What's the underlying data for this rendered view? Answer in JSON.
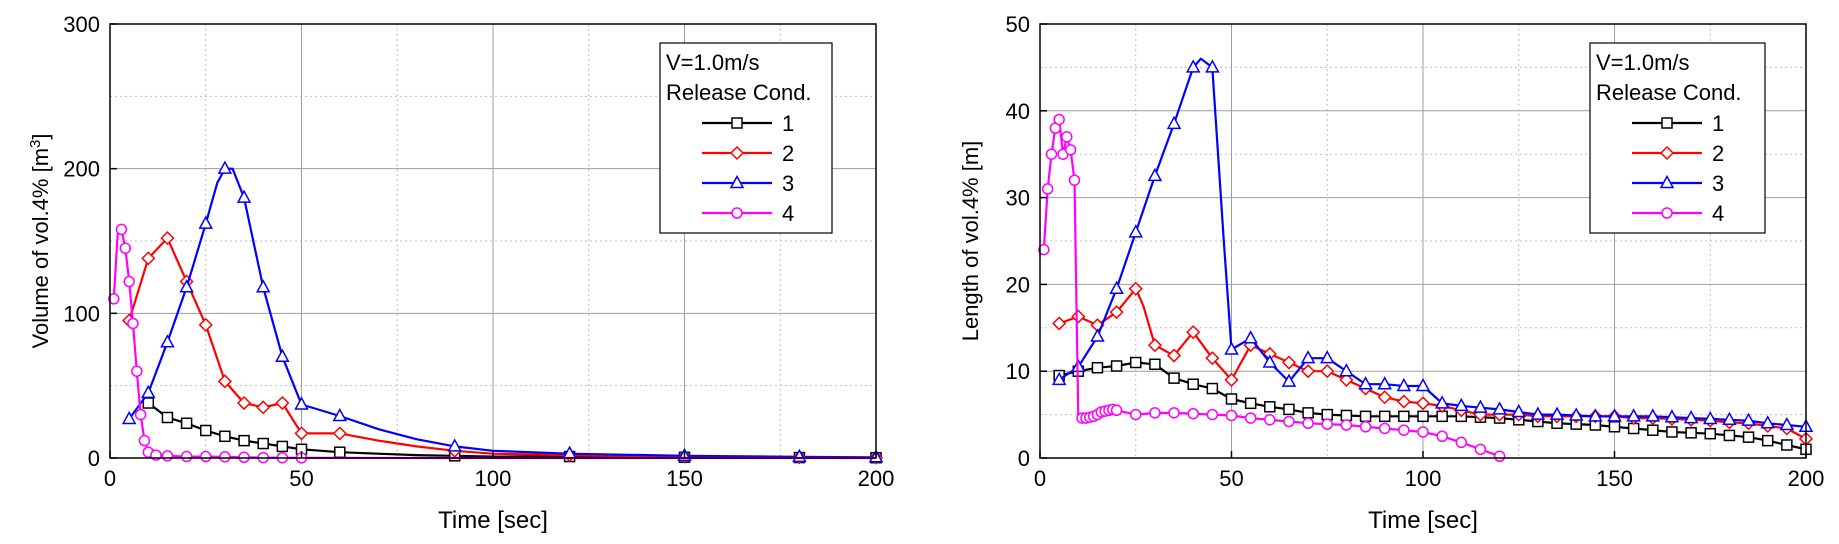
{
  "chart_data": [
    {
      "type": "line",
      "xlabel": "Time [sec]",
      "ylabel": "Volume of vol.4% [m",
      "ylabel_sup": "3",
      "ylabel_tail": "]",
      "xlim": [
        0,
        200
      ],
      "ylim": [
        0,
        300
      ],
      "xticks": [
        0,
        50,
        100,
        150,
        200
      ],
      "yticks": [
        0,
        100,
        200,
        300
      ],
      "grid": true,
      "legend": {
        "position": "top-right",
        "title_lines": [
          "V=1.0m/s",
          "Release Cond."
        ]
      },
      "series": [
        {
          "name": "1",
          "color": "#000000",
          "marker": "square",
          "x": [
            10,
            15,
            20,
            25,
            30,
            35,
            40,
            45,
            50,
            60,
            70,
            80,
            90,
            100,
            120,
            150,
            180,
            200
          ],
          "y": [
            38,
            28,
            24,
            19,
            15,
            12,
            10,
            8,
            6,
            4,
            3,
            2,
            1.5,
            1,
            1,
            0.5,
            0.3,
            0.2
          ],
          "markers_at": [
            10,
            15,
            20,
            25,
            30,
            35,
            40,
            45,
            50,
            60,
            90,
            120,
            150,
            180,
            200
          ]
        },
        {
          "name": "2",
          "color": "#ff0000",
          "marker": "diamond",
          "x": [
            5,
            10,
            15,
            20,
            25,
            30,
            35,
            40,
            45,
            50,
            60,
            70,
            80,
            90,
            100,
            120,
            150,
            180,
            200
          ],
          "y": [
            95,
            138,
            152,
            122,
            92,
            53,
            38,
            35,
            38,
            17,
            17,
            12,
            8,
            5,
            3,
            2,
            1,
            0.5,
            0.3
          ],
          "markers_at": [
            5,
            10,
            15,
            20,
            25,
            30,
            35,
            40,
            45,
            50,
            60,
            90,
            120,
            150,
            180,
            200
          ]
        },
        {
          "name": "3",
          "color": "#0000ff",
          "marker": "triangle",
          "x": [
            5,
            10,
            15,
            20,
            25,
            28,
            30,
            32,
            35,
            40,
            45,
            50,
            60,
            70,
            80,
            90,
            100,
            120,
            150,
            180,
            200
          ],
          "y": [
            27,
            45,
            80,
            118,
            162,
            190,
            200,
            200,
            180,
            118,
            70,
            37,
            29,
            20,
            13,
            8,
            5,
            3,
            1.5,
            0.8,
            0.5
          ],
          "markers_at": [
            5,
            10,
            15,
            20,
            25,
            30,
            35,
            40,
            45,
            50,
            60,
            90,
            120,
            150,
            180,
            200
          ]
        },
        {
          "name": "4",
          "color": "#ff00ff",
          "marker": "circle",
          "x": [
            1,
            2,
            3,
            4,
            5,
            6,
            7,
            8,
            9,
            10,
            12,
            15,
            20,
            25,
            30,
            35,
            40,
            45,
            50,
            60,
            80,
            100,
            150,
            200
          ],
          "y": [
            110,
            155,
            158,
            145,
            122,
            93,
            60,
            30,
            12,
            4,
            2,
            1.5,
            1,
            1,
            0.8,
            0.5,
            0.3,
            0.2,
            0.1,
            0.1,
            0,
            0,
            0,
            0
          ],
          "markers_at": [
            1,
            3,
            4,
            5,
            6,
            7,
            8,
            9,
            10,
            12,
            15,
            20,
            25,
            30,
            35,
            40,
            45,
            50
          ]
        }
      ]
    },
    {
      "type": "line",
      "xlabel": "Time [sec]",
      "ylabel": "Length of vol.4% [m]",
      "ylabel_sup": "",
      "ylabel_tail": "",
      "xlim": [
        0,
        200
      ],
      "ylim": [
        0,
        50
      ],
      "xticks": [
        0,
        50,
        100,
        150,
        200
      ],
      "yticks": [
        0,
        10,
        20,
        30,
        40,
        50
      ],
      "grid": true,
      "legend": {
        "position": "top-right",
        "title_lines": [
          "V=1.0m/s",
          "Release Cond."
        ]
      },
      "series": [
        {
          "name": "1",
          "color": "#000000",
          "marker": "square",
          "x": [
            5,
            10,
            15,
            20,
            25,
            30,
            35,
            40,
            45,
            50,
            55,
            60,
            65,
            70,
            75,
            80,
            85,
            90,
            95,
            100,
            105,
            110,
            115,
            120,
            125,
            130,
            135,
            140,
            145,
            150,
            155,
            160,
            165,
            170,
            175,
            180,
            185,
            190,
            195,
            200
          ],
          "y": [
            9.5,
            10,
            10.4,
            10.6,
            11,
            10.8,
            9.2,
            8.5,
            8,
            6.8,
            6.3,
            5.9,
            5.6,
            5.2,
            5,
            4.9,
            4.8,
            4.8,
            4.8,
            4.8,
            4.8,
            4.8,
            4.7,
            4.6,
            4.4,
            4.2,
            4,
            3.9,
            3.8,
            3.6,
            3.4,
            3.2,
            3,
            2.9,
            2.8,
            2.6,
            2.4,
            2,
            1.5,
            1
          ],
          "markers_at": "all"
        },
        {
          "name": "2",
          "color": "#ff0000",
          "marker": "diamond",
          "x": [
            5,
            10,
            15,
            20,
            25,
            27,
            30,
            35,
            40,
            45,
            50,
            55,
            60,
            65,
            70,
            75,
            80,
            85,
            90,
            95,
            100,
            105,
            110,
            115,
            120,
            125,
            130,
            135,
            140,
            145,
            150,
            155,
            160,
            165,
            170,
            175,
            180,
            185,
            190,
            195,
            200
          ],
          "y": [
            15.5,
            16.3,
            15.3,
            16.8,
            19.5,
            17.5,
            13,
            11.8,
            14.5,
            11.5,
            9,
            13,
            12,
            11,
            10,
            10,
            9,
            8,
            7,
            6.5,
            6.3,
            6,
            5.5,
            5,
            5,
            5,
            4.8,
            4.8,
            4.8,
            4.8,
            4.8,
            4.6,
            4.6,
            4.5,
            4.4,
            4.3,
            4.1,
            4,
            3.7,
            3.4,
            2.2
          ],
          "markers_at": [
            5,
            10,
            15,
            20,
            25,
            30,
            35,
            40,
            45,
            50,
            55,
            60,
            65,
            70,
            75,
            80,
            85,
            90,
            95,
            100,
            105,
            110,
            115,
            120,
            125,
            130,
            135,
            140,
            145,
            150,
            155,
            160,
            165,
            170,
            175,
            180,
            185,
            190,
            195,
            200
          ]
        },
        {
          "name": "3",
          "color": "#0000ff",
          "marker": "triangle",
          "x": [
            5,
            10,
            15,
            20,
            25,
            30,
            35,
            40,
            42,
            45,
            48,
            50,
            55,
            60,
            65,
            70,
            75,
            80,
            85,
            90,
            95,
            100,
            105,
            110,
            115,
            120,
            125,
            130,
            135,
            140,
            145,
            150,
            155,
            160,
            165,
            170,
            175,
            180,
            185,
            190,
            195,
            200
          ],
          "y": [
            9,
            10.5,
            14,
            19.5,
            26,
            32.5,
            38.5,
            45,
            46,
            45,
            25,
            12.5,
            13.8,
            11,
            8.8,
            11.5,
            11.5,
            10,
            8.5,
            8.5,
            8.3,
            8.3,
            6.3,
            6,
            5.8,
            5.6,
            5.3,
            5,
            5,
            4.9,
            4.8,
            4.8,
            4.8,
            4.8,
            4.7,
            4.6,
            4.5,
            4.4,
            4.3,
            4,
            3.8,
            3.6
          ],
          "markers_at": [
            5,
            10,
            15,
            20,
            25,
            30,
            35,
            40,
            45,
            50,
            55,
            60,
            65,
            70,
            75,
            80,
            85,
            90,
            95,
            100,
            105,
            110,
            115,
            120,
            125,
            130,
            135,
            140,
            145,
            150,
            155,
            160,
            165,
            170,
            175,
            180,
            185,
            190,
            195,
            200
          ]
        },
        {
          "name": "4",
          "color": "#ff00ff",
          "marker": "circle",
          "x": [
            1,
            2,
            3,
            4,
            5,
            6,
            7,
            8,
            9,
            10,
            11,
            12,
            13,
            14,
            15,
            16,
            17,
            18,
            19,
            20,
            25,
            30,
            35,
            40,
            45,
            50,
            55,
            60,
            65,
            70,
            75,
            80,
            85,
            90,
            95,
            100,
            105,
            110,
            115,
            120
          ],
          "y": [
            24,
            31,
            35,
            38,
            39,
            35,
            37,
            35.5,
            32,
            4.6,
            4.6,
            4.6,
            4.7,
            4.8,
            5,
            5.3,
            5.4,
            5.5,
            5.6,
            5.5,
            5,
            5.2,
            5.2,
            5.1,
            5,
            4.9,
            4.6,
            4.4,
            4.2,
            4,
            3.9,
            3.8,
            3.6,
            3.4,
            3.2,
            3,
            2.5,
            1.8,
            1,
            0.2
          ],
          "markers_at": [
            1,
            2,
            3,
            4,
            5,
            6,
            7,
            8,
            9,
            11,
            12,
            13,
            14,
            15,
            16,
            17,
            18,
            19,
            20,
            25,
            30,
            35,
            40,
            45,
            50,
            55,
            60,
            65,
            70,
            75,
            80,
            85,
            90,
            95,
            100,
            105,
            110,
            115,
            120
          ]
        }
      ]
    }
  ]
}
